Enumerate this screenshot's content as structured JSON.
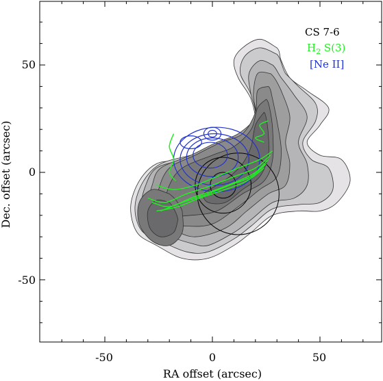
{
  "chart_data": {
    "type": "contour",
    "title": "",
    "xlabel": "RA offset (arcsec)",
    "ylabel": "Dec. offset (arcsec)",
    "xlim": [
      80,
      -80
    ],
    "ylim": [
      -80,
      80
    ],
    "x_ticks": [
      -50,
      0,
      50
    ],
    "y_ticks": [
      -50,
      0,
      50
    ],
    "x_tick_labels": [
      "-50",
      "0",
      "50"
    ],
    "y_tick_labels": [
      "-50",
      "0",
      "50"
    ],
    "grid": false,
    "legend_position": "top-right",
    "legend": [
      {
        "label": "CS 7-6",
        "sub": "",
        "sup_text": "",
        "color": "#000000"
      },
      {
        "label": "H",
        "sub": "2",
        "sup_text": " S(3)",
        "color": "#22ee22"
      },
      {
        "label": "[Ne II]",
        "sub": "",
        "sup_text": "",
        "color": "#2233cc"
      }
    ],
    "series": [
      {
        "name": "CS 7-6",
        "kind": "filled-contours",
        "colors": [
          "#e6e3e6",
          "#cbcacd",
          "#b5b4b7",
          "#9f9e9f",
          "#8b8a8b",
          "#7a797a",
          "#6a696b"
        ],
        "levels": [
          [
            [
              -30,
              58
            ],
            [
              -22,
              62
            ],
            [
              -14,
              58
            ],
            [
              -10,
              52
            ],
            [
              -12,
              44
            ],
            [
              -18,
              34
            ],
            [
              -20,
              22
            ],
            [
              -16,
              14
            ],
            [
              -6,
              10
            ],
            [
              4,
              10
            ],
            [
              14,
              6
            ],
            [
              26,
              4
            ],
            [
              34,
              -4
            ],
            [
              38,
              -16
            ],
            [
              35,
              -28
            ],
            [
              26,
              -34
            ],
            [
              14,
              -40
            ],
            [
              2,
              -40
            ],
            [
              -10,
              -34
            ],
            [
              -18,
              -28
            ],
            [
              -28,
              -20
            ],
            [
              -40,
              -18
            ],
            [
              -50,
              -18
            ],
            [
              -58,
              -14
            ],
            [
              -64,
              -4
            ],
            [
              -60,
              6
            ],
            [
              -50,
              8
            ],
            [
              -44,
              14
            ],
            [
              -50,
              22
            ],
            [
              -54,
              30
            ],
            [
              -44,
              38
            ],
            [
              -36,
              44
            ],
            [
              -32,
              52
            ]
          ],
          [
            [
              -30,
              55
            ],
            [
              -22,
              58
            ],
            [
              -15,
              54
            ],
            [
              -13,
              46
            ],
            [
              -18,
              36
            ],
            [
              -20,
              24
            ],
            [
              -14,
              16
            ],
            [
              -4,
              12
            ],
            [
              10,
              8
            ],
            [
              24,
              4
            ],
            [
              32,
              -4
            ],
            [
              36,
              -16
            ],
            [
              33,
              -27
            ],
            [
              24,
              -32
            ],
            [
              12,
              -37
            ],
            [
              2,
              -37
            ],
            [
              -10,
              -31
            ],
            [
              -18,
              -25
            ],
            [
              -28,
              -17
            ],
            [
              -40,
              -15
            ],
            [
              -50,
              -14
            ],
            [
              -56,
              -8
            ],
            [
              -54,
              2
            ],
            [
              -46,
              6
            ],
            [
              -42,
              14
            ],
            [
              -48,
              24
            ],
            [
              -48,
              32
            ],
            [
              -40,
              40
            ],
            [
              -34,
              46
            ]
          ],
          [
            [
              -28,
              50
            ],
            [
              -22,
              52
            ],
            [
              -17,
              46
            ],
            [
              -18,
              36
            ],
            [
              -20,
              26
            ],
            [
              -12,
              16
            ],
            [
              0,
              12
            ],
            [
              14,
              6
            ],
            [
              26,
              2
            ],
            [
              31,
              -6
            ],
            [
              33,
              -16
            ],
            [
              30,
              -25
            ],
            [
              22,
              -29
            ],
            [
              10,
              -33
            ],
            [
              2,
              -34
            ],
            [
              -10,
              -28
            ],
            [
              -18,
              -22
            ],
            [
              -28,
              -14
            ],
            [
              -38,
              -12
            ],
            [
              -44,
              -6
            ],
            [
              -44,
              4
            ],
            [
              -40,
              14
            ],
            [
              -44,
              26
            ],
            [
              -38,
              36
            ],
            [
              -32,
              44
            ]
          ],
          [
            [
              -27,
              46
            ],
            [
              -21,
              46
            ],
            [
              -19,
              36
            ],
            [
              -20,
              26
            ],
            [
              -12,
              18
            ],
            [
              -2,
              14
            ],
            [
              10,
              8
            ],
            [
              24,
              2
            ],
            [
              28,
              -6
            ],
            [
              30,
              -16
            ],
            [
              27,
              -24
            ],
            [
              18,
              -27
            ],
            [
              8,
              -30
            ],
            [
              -6,
              -26
            ],
            [
              -16,
              -18
            ],
            [
              -26,
              -10
            ],
            [
              -34,
              -6
            ],
            [
              -36,
              4
            ],
            [
              -34,
              14
            ],
            [
              -36,
              26
            ],
            [
              -32,
              38
            ]
          ],
          [
            [
              -26,
              40
            ],
            [
              -21,
              38
            ],
            [
              -20,
              28
            ],
            [
              -14,
              18
            ],
            [
              -4,
              14
            ],
            [
              8,
              8
            ],
            [
              20,
              2
            ],
            [
              25,
              -8
            ],
            [
              26,
              -18
            ],
            [
              22,
              -23
            ],
            [
              12,
              -25
            ],
            [
              0,
              -24
            ],
            [
              -12,
              -16
            ],
            [
              -22,
              -8
            ],
            [
              -30,
              -2
            ],
            [
              -32,
              10
            ],
            [
              -30,
              24
            ],
            [
              -28,
              34
            ]
          ],
          [
            [
              -25,
              34
            ],
            [
              -21,
              30
            ],
            [
              -18,
              20
            ],
            [
              -10,
              12
            ],
            [
              0,
              8
            ],
            [
              14,
              2
            ],
            [
              20,
              -6
            ],
            [
              22,
              -16
            ],
            [
              18,
              -20
            ],
            [
              10,
              -20
            ],
            [
              -2,
              -18
            ],
            [
              -14,
              -10
            ],
            [
              -24,
              -4
            ],
            [
              -28,
              6
            ],
            [
              -28,
              20
            ],
            [
              -27,
              28
            ]
          ],
          [
            [
              -24,
              28
            ],
            [
              -20,
              22
            ],
            [
              -18,
              12
            ],
            [
              -14,
              4
            ],
            [
              -8,
              -2
            ],
            [
              -2,
              -6
            ],
            [
              4,
              -10
            ],
            [
              2,
              -14
            ],
            [
              -6,
              -14
            ],
            [
              -14,
              -8
            ],
            [
              -22,
              -2
            ],
            [
              -26,
              8
            ],
            [
              -26,
              18
            ]
          ]
        ],
        "secondary_blob": [
          [
            [
              20,
              -10
            ],
            [
              28,
              -8
            ],
            [
              34,
              -14
            ],
            [
              34,
              -24
            ],
            [
              28,
              -32
            ],
            [
              20,
              -34
            ],
            [
              14,
              -28
            ],
            [
              14,
              -18
            ]
          ],
          [
            [
              20,
              -14
            ],
            [
              26,
              -13
            ],
            [
              30,
              -18
            ],
            [
              29,
              -26
            ],
            [
              24,
              -30
            ],
            [
              18,
              -28
            ],
            [
              16,
              -22
            ]
          ]
        ]
      },
      {
        "name": "beam-circles",
        "kind": "circles",
        "circles": [
          {
            "cx": -12,
            "cy": -10,
            "r": 19
          },
          {
            "cx": -5,
            "cy": -6,
            "r": 13
          },
          {
            "cx": -5,
            "cy": -6,
            "r": 6
          }
        ]
      },
      {
        "name": "[Ne II]",
        "kind": "line-contours",
        "color": "#2233cc",
        "rings": [
          {
            "cx": -2,
            "cy": 6,
            "rx": 20,
            "ry": 15
          },
          {
            "cx": -1,
            "cy": 6,
            "rx": 16,
            "ry": 12
          },
          {
            "cx": 0,
            "cy": 7,
            "rx": 12,
            "ry": 9
          },
          {
            "cx": 1,
            "cy": 8,
            "rx": 8,
            "ry": 6
          },
          {
            "cx": 0,
            "cy": 18,
            "rx": 4,
            "ry": 3
          },
          {
            "cx": 0,
            "cy": 18,
            "rx": 2,
            "ry": 1.6
          },
          {
            "cx": 10,
            "cy": 14,
            "rx": 5,
            "ry": 3
          }
        ]
      },
      {
        "name": "H2 S(3)",
        "kind": "line-contours",
        "color": "#22ee22",
        "arcs": [
          [
            [
              -26,
              6
            ],
            [
              -20,
              0
            ],
            [
              -12,
              -4
            ],
            [
              -2,
              -8
            ],
            [
              10,
              -12
            ],
            [
              20,
              -16
            ],
            [
              28,
              -14
            ]
          ],
          [
            [
              -27,
              8
            ],
            [
              -20,
              2
            ],
            [
              -10,
              -2
            ],
            [
              0,
              -6
            ],
            [
              12,
              -10
            ],
            [
              22,
              -14
            ],
            [
              30,
              -12
            ]
          ],
          [
            [
              -25,
              4
            ],
            [
              -18,
              -2
            ],
            [
              -8,
              -6
            ],
            [
              2,
              -10
            ],
            [
              14,
              -14
            ],
            [
              24,
              -18
            ]
          ],
          [
            [
              -28,
              10
            ],
            [
              -22,
              6
            ],
            [
              -12,
              2
            ],
            [
              -2,
              -2
            ],
            [
              8,
              -6
            ],
            [
              18,
              -8
            ],
            [
              26,
              -6
            ]
          ],
          [
            [
              -24,
              2
            ],
            [
              -16,
              -4
            ],
            [
              -6,
              -8
            ],
            [
              6,
              -12
            ],
            [
              16,
              -16
            ],
            [
              26,
              -18
            ]
          ],
          [
            [
              -26,
              24
            ],
            [
              -22,
              22
            ],
            [
              -24,
              18
            ],
            [
              -20,
              16
            ],
            [
              -24,
              14
            ]
          ],
          [
            [
              18,
              18
            ],
            [
              20,
              12
            ],
            [
              18,
              6
            ],
            [
              20,
              0
            ],
            [
              17,
              -4
            ]
          ]
        ]
      }
    ]
  }
}
